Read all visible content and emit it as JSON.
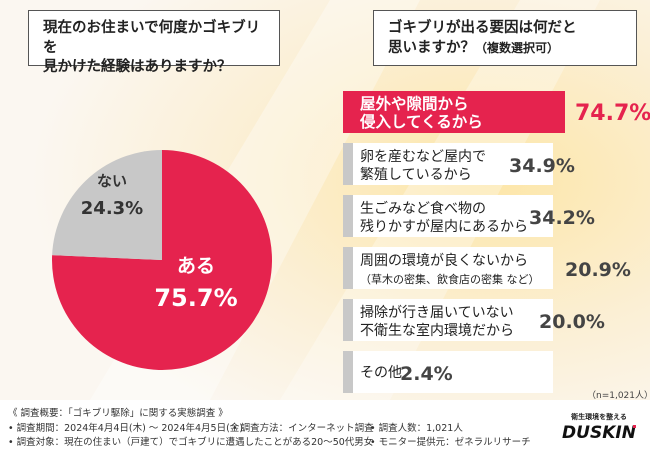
{
  "questions": {
    "left": {
      "line1": "現在のお住まいで何度かゴキブリを",
      "line2": "見かけた経験はありますか？"
    },
    "right": {
      "line1": "ゴキブリが出る要因は何だと",
      "line2": "思いますか？",
      "sub": "（複数選択可）"
    }
  },
  "chart_data": [
    {
      "type": "pie",
      "title": "現在のお住まいで何度かゴキブリを見かけた経験はありますか？",
      "slices": [
        {
          "label": "ある",
          "value": 75.7,
          "display": "75.7%",
          "color": "#e5234e"
        },
        {
          "label": "ない",
          "value": 24.3,
          "display": "24.3%",
          "color": "#c8c8c8"
        }
      ]
    },
    {
      "type": "bar",
      "orientation": "horizontal",
      "title": "ゴキブリが出る要因は何だと思いますか？（複数選択可）",
      "categories": [
        [
          "屋外や隙間から",
          "侵入してくるから"
        ],
        [
          "卵を産むなど屋内で",
          "繁殖しているから"
        ],
        [
          "生ごみなど食べ物の",
          "残りかすが屋内にあるから"
        ],
        [
          "周囲の環境が良くないから",
          "（草木の密集、飲食店の密集 など）"
        ],
        [
          "掃除が行き届いていない",
          "不衛生な室内環境だから"
        ],
        [
          "その他"
        ]
      ],
      "values": [
        74.7,
        34.9,
        34.2,
        20.9,
        20.0,
        2.4
      ],
      "display": [
        "74.7%",
        "34.9%",
        "34.2%",
        "20.9%",
        "20.0%",
        "2.4%"
      ],
      "highlight_color": "#e5234e",
      "bar_color": "#c8c8c8",
      "note": "（n=1,021人）"
    }
  ],
  "footer": {
    "line1": "《 調査概要：「ゴキブリ駆除」に関する実態調査 》",
    "period": "• 調査期間：2024年4月4日(木) ～ 2024年4月5日(金)",
    "method": "• 調査方法：インターネット調査",
    "count": "• 調査人数：1,021人",
    "target": "• 調査対象：現在の住まい（戸建て）でゴキブリに遭遇したことがある20～50代男女",
    "provider": "• モニター提供元：ゼネラルリサーチ"
  },
  "logo": {
    "tagline": "衛生環境を整える",
    "name": "DUSKIN"
  }
}
